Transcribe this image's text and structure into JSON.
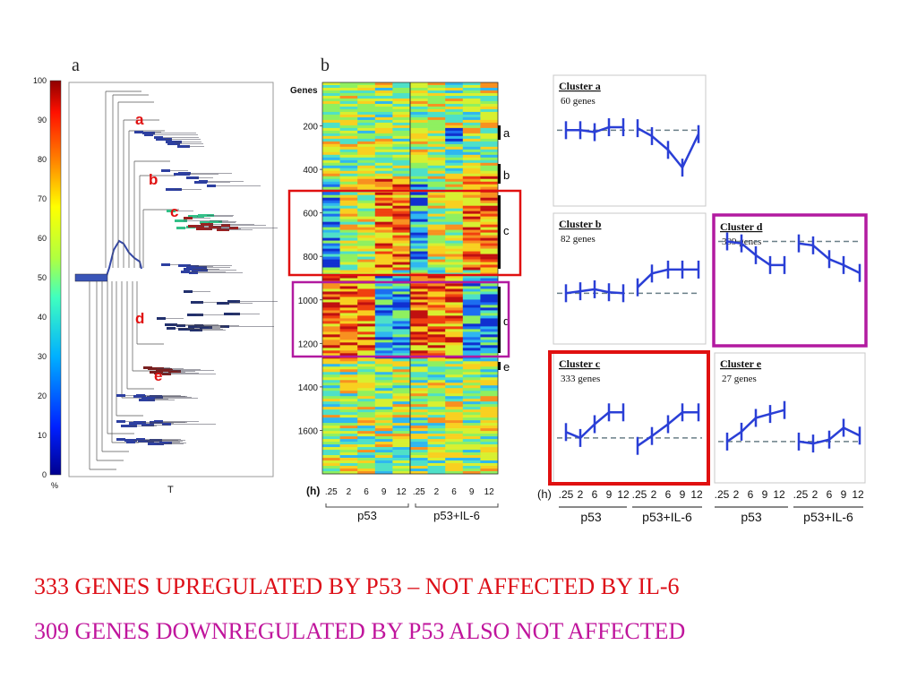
{
  "panel_a": {
    "label": "a",
    "colorbar_ticks": [
      "100",
      "90",
      "80",
      "70",
      "60",
      "50",
      "40",
      "30",
      "20",
      "10",
      "0"
    ],
    "colorbar_unit": "%",
    "x_label": "T",
    "cluster_markers": [
      "a",
      "b",
      "c",
      "d",
      "e"
    ]
  },
  "panel_b": {
    "label": "b",
    "y_title": "Genes",
    "y_ticks": [
      "200",
      "400",
      "600",
      "800",
      "1000",
      "1200",
      "1400",
      "1600"
    ],
    "time_unit": "(h)",
    "time_ticks": [
      ".25",
      "2",
      "6",
      "9",
      "12",
      ".25",
      "2",
      "6",
      "9",
      "12"
    ],
    "group_labels": [
      "p53",
      "p53+IL-6"
    ],
    "cluster_brackets": [
      "a",
      "b",
      "c",
      "d",
      "e"
    ]
  },
  "panel_c": {
    "time_unit": "(h)",
    "time_ticks": [
      ".25",
      "2",
      "6",
      "9",
      "12",
      ".25",
      "2",
      "6",
      "9",
      "12"
    ],
    "group_labels": [
      "p53",
      "p53+IL-6",
      "p53",
      "p53+IL-6"
    ],
    "clusters": [
      {
        "title": "Cluster a",
        "genes": "60 genes"
      },
      {
        "title": "Cluster b",
        "genes": "82 genes"
      },
      {
        "title": "Cluster d",
        "genes": "309 genes"
      },
      {
        "title": "Cluster c",
        "genes": "333 genes"
      },
      {
        "title": "Cluster e",
        "genes": "27 genes"
      }
    ]
  },
  "chart_data": [
    {
      "type": "heatmap",
      "title": "b",
      "ylabel": "Genes",
      "ylim": [
        0,
        1800
      ],
      "x": [
        "0.25h",
        "2h",
        "6h",
        "9h",
        "12h",
        "0.25h",
        "2h",
        "6h",
        "9h",
        "12h"
      ],
      "groups": [
        "p53",
        "p53+IL-6"
      ]
    },
    {
      "type": "line",
      "title": "Cluster a",
      "x": [
        0.25,
        2,
        6,
        9,
        12,
        0.25,
        2,
        6,
        9,
        12
      ],
      "values": [
        0.0,
        0.0,
        -0.1,
        0.15,
        0.15,
        0.1,
        -0.3,
        -1.0,
        -1.9,
        -0.2
      ]
    },
    {
      "type": "line",
      "title": "Cluster b",
      "x": [
        0.25,
        2,
        6,
        9,
        12,
        0.25,
        2,
        6,
        9,
        12
      ],
      "values": [
        0.0,
        0.1,
        0.2,
        0.05,
        0.0,
        0.3,
        1.0,
        1.2,
        1.2,
        1.2
      ]
    },
    {
      "type": "line",
      "title": "Cluster d",
      "x": [
        0.25,
        2,
        6,
        9,
        12,
        0.25,
        2,
        6,
        9,
        12
      ],
      "values": [
        0.0,
        -0.1,
        -0.7,
        -1.2,
        -1.2,
        -0.1,
        -0.2,
        -0.9,
        -1.2,
        -1.6
      ]
    },
    {
      "type": "line",
      "title": "Cluster c",
      "x": [
        0.25,
        2,
        6,
        9,
        12,
        0.25,
        2,
        6,
        9,
        12
      ],
      "values": [
        0.3,
        0.0,
        0.7,
        1.3,
        1.3,
        -0.4,
        0.1,
        0.7,
        1.3,
        1.3
      ]
    },
    {
      "type": "line",
      "title": "Cluster e",
      "x": [
        0.25,
        2,
        6,
        9,
        12,
        0.25,
        2,
        6,
        9,
        12
      ],
      "values": [
        0.0,
        0.5,
        1.2,
        1.4,
        1.6,
        0.0,
        -0.1,
        0.1,
        0.7,
        0.3
      ]
    }
  ],
  "captions": {
    "line1": "333 GENES UPREGULATED BY P53 – NOT AFFECTED BY IL-6",
    "line2": "309 GENES DOWNREGULATED BY P53 ALSO NOT AFFECTED"
  },
  "colors": {
    "line1": "#dd0f18",
    "line2": "#c0159c",
    "highlight_red": "#e01010",
    "highlight_magenta": "#b21aa0",
    "cluster_line": "#2a3fd6"
  }
}
